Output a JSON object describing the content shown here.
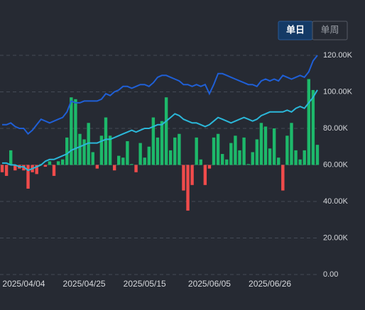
{
  "toggle": {
    "options": [
      "单日",
      "单周"
    ],
    "selected": 0
  },
  "chart_data": {
    "type": "bar_line",
    "categories": [
      null,
      null,
      null,
      null,
      null,
      "2025/04/04",
      null,
      null,
      null,
      null,
      null,
      null,
      null,
      null,
      null,
      null,
      null,
      null,
      null,
      "2025/04/25",
      null,
      null,
      null,
      null,
      null,
      null,
      null,
      null,
      null,
      null,
      null,
      null,
      null,
      "2025/05/15",
      null,
      null,
      null,
      null,
      null,
      null,
      null,
      null,
      null,
      null,
      null,
      null,
      null,
      null,
      "2025/06/05",
      null,
      null,
      null,
      null,
      null,
      null,
      null,
      null,
      null,
      null,
      null,
      null,
      null,
      "2025/06/26",
      null,
      null,
      null,
      null,
      null,
      null,
      null,
      null,
      null,
      null,
      null
    ],
    "bars": {
      "base": 60000,
      "up_color": "#1db86a",
      "down_color": "#f04b4b",
      "values": [
        56000,
        54000,
        68000,
        57000,
        58000,
        57000,
        47000,
        56000,
        55000,
        60500,
        59000,
        62000,
        54000,
        62000,
        63000,
        75000,
        97000,
        96000,
        77000,
        74000,
        83000,
        67000,
        58000,
        76000,
        86000,
        76000,
        57000,
        65000,
        64000,
        73000,
        60500,
        56000,
        72000,
        64000,
        70000,
        86000,
        75000,
        84000,
        97000,
        68000,
        75000,
        77000,
        46000,
        35000,
        49000,
        75000,
        63000,
        49000,
        58000,
        75000,
        77000,
        66000,
        63000,
        72000,
        76000,
        68000,
        75000,
        60500,
        67000,
        74000,
        83000,
        81000,
        69000,
        80000,
        64000,
        46000,
        76000,
        83000,
        68000,
        63000,
        68000,
        107000,
        101000,
        71000
      ]
    },
    "lines": [
      {
        "color": "#1f5fd6",
        "values": [
          82000,
          82000,
          83000,
          81000,
          80000,
          80000,
          77000,
          79000,
          82000,
          85000,
          84000,
          83000,
          84000,
          85000,
          86000,
          89000,
          95000,
          94000,
          94000,
          95000,
          95000,
          95000,
          95000,
          96000,
          99000,
          98000,
          100000,
          101000,
          103000,
          103000,
          102000,
          103000,
          104000,
          104000,
          103000,
          105000,
          108000,
          109000,
          109000,
          108000,
          107000,
          106000,
          104000,
          104000,
          103000,
          104000,
          103000,
          104000,
          99000,
          104000,
          110000,
          110000,
          109000,
          108000,
          107000,
          106000,
          105000,
          104000,
          104000,
          103000,
          106000,
          107000,
          106000,
          107000,
          106000,
          109000,
          108000,
          107000,
          108000,
          109000,
          108000,
          111000,
          117000,
          120000
        ]
      },
      {
        "color": "#2bb7d9",
        "values": [
          61000,
          61000,
          60000,
          60000,
          59000,
          59000,
          57000,
          58000,
          59000,
          60000,
          62000,
          63000,
          63000,
          64000,
          65000,
          66000,
          68000,
          69000,
          70000,
          71000,
          72000,
          72000,
          72000,
          73000,
          74000,
          74000,
          75000,
          76000,
          77000,
          78000,
          79000,
          78000,
          79000,
          80000,
          80000,
          81000,
          82000,
          82000,
          84000,
          86000,
          88000,
          87000,
          85000,
          84000,
          83000,
          83000,
          82000,
          81000,
          82000,
          84000,
          86000,
          85000,
          84000,
          83000,
          84000,
          85000,
          86000,
          85000,
          84000,
          85000,
          87000,
          88000,
          89000,
          89000,
          89000,
          89000,
          90000,
          89000,
          91000,
          92000,
          91000,
          94000,
          97000,
          101000
        ]
      }
    ],
    "ylim": [
      0,
      120000
    ],
    "yticks": [
      {
        "value": 0,
        "label": "0.00"
      },
      {
        "value": 20000,
        "label": "20.00K"
      },
      {
        "value": 40000,
        "label": "40.00K"
      },
      {
        "value": 60000,
        "label": "60.00K"
      },
      {
        "value": 80000,
        "label": "80.00K"
      },
      {
        "value": 100000,
        "label": "100.00K"
      },
      {
        "value": 120000,
        "label": "120.00K"
      }
    ],
    "grid": true
  }
}
